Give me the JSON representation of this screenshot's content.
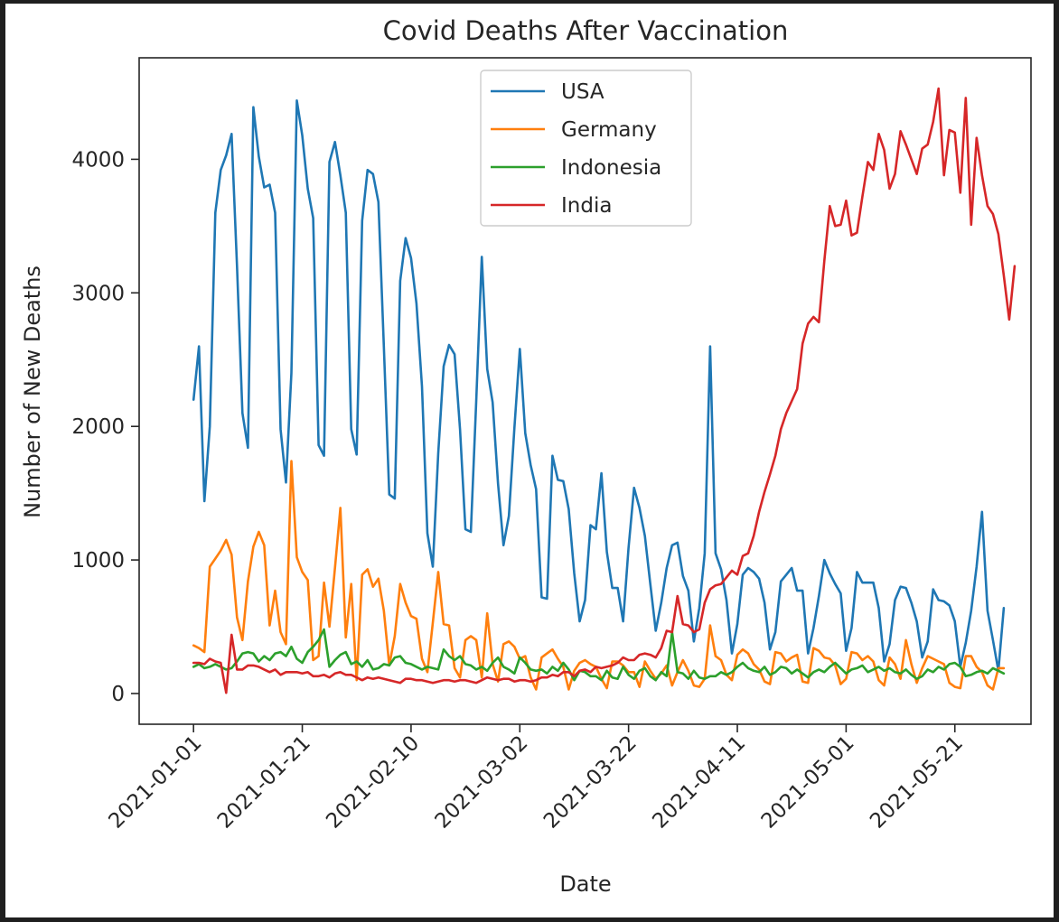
{
  "chart_data": {
    "type": "line",
    "title": "Covid Deaths After Vaccination",
    "xlabel": "Date",
    "ylabel": "Number of New Deaths",
    "x_start": "2021-01-01",
    "x_end": "2021-05-27",
    "xlim": [
      "2020-12-22",
      "2021-06-04"
    ],
    "ylim": [
      -230,
      4760
    ],
    "x_ticks": [
      "2021-01-01",
      "2021-01-21",
      "2021-02-10",
      "2021-03-02",
      "2021-03-22",
      "2021-04-11",
      "2021-05-01",
      "2021-05-21"
    ],
    "y_ticks": [
      0,
      1000,
      2000,
      3000,
      4000
    ],
    "legend_position": "upper center",
    "grid": false,
    "series": [
      {
        "name": "USA",
        "color": "#1f77b4",
        "values": [
          2200,
          2600,
          1440,
          2000,
          3600,
          3920,
          4030,
          4190,
          3200,
          2100,
          1840,
          4390,
          4020,
          3790,
          3810,
          3600,
          1980,
          1580,
          2400,
          4440,
          4180,
          3780,
          3560,
          1860,
          1780,
          3980,
          4130,
          3880,
          3600,
          1980,
          1790,
          3540,
          3920,
          3890,
          3680,
          2600,
          1490,
          1460,
          3090,
          3410,
          3260,
          2920,
          2300,
          1200,
          950,
          1800,
          2450,
          2610,
          2540,
          1980,
          1230,
          1210,
          2200,
          3270,
          2430,
          2180,
          1570,
          1110,
          1330,
          1990,
          2580,
          1950,
          1710,
          1530,
          720,
          710,
          1780,
          1600,
          1590,
          1380,
          900,
          540,
          700,
          1260,
          1230,
          1650,
          1060,
          790,
          790,
          540,
          1090,
          1540,
          1390,
          1180,
          820,
          470,
          680,
          940,
          1110,
          1130,
          880,
          770,
          390,
          640,
          1050,
          2600,
          1050,
          930,
          700,
          300,
          520,
          890,
          940,
          910,
          860,
          680,
          330,
          460,
          840,
          890,
          940,
          770,
          770,
          300,
          490,
          730,
          1000,
          900,
          820,
          750,
          320,
          490,
          910,
          830,
          830,
          830,
          640,
          240,
          370,
          700,
          800,
          790,
          680,
          540,
          270,
          390,
          780,
          700,
          690,
          660,
          540,
          200,
          380,
          620,
          950,
          1360,
          620,
          400,
          170,
          640
        ]
      },
      {
        "name": "Germany",
        "color": "#ff7f0e",
        "values": [
          360,
          340,
          310,
          950,
          1010,
          1070,
          1150,
          1040,
          570,
          400,
          840,
          1100,
          1210,
          1110,
          510,
          770,
          460,
          370,
          1740,
          1020,
          910,
          850,
          250,
          280,
          830,
          500,
          940,
          1390,
          420,
          820,
          100,
          890,
          930,
          800,
          860,
          620,
          210,
          430,
          820,
          680,
          580,
          560,
          260,
          160,
          530,
          910,
          520,
          510,
          190,
          120,
          400,
          430,
          400,
          120,
          600,
          220,
          90,
          370,
          390,
          350,
          260,
          280,
          120,
          30,
          270,
          300,
          330,
          260,
          200,
          30,
          170,
          230,
          250,
          220,
          200,
          110,
          40,
          240,
          240,
          210,
          160,
          160,
          50,
          240,
          170,
          110,
          150,
          210,
          60,
          160,
          250,
          170,
          60,
          50,
          110,
          510,
          280,
          250,
          140,
          100,
          290,
          330,
          300,
          220,
          180,
          90,
          70,
          310,
          300,
          240,
          270,
          290,
          90,
          80,
          340,
          320,
          270,
          260,
          210,
          70,
          110,
          310,
          300,
          250,
          280,
          240,
          100,
          60,
          270,
          220,
          110,
          400,
          220,
          80,
          190,
          280,
          260,
          240,
          220,
          80,
          50,
          40,
          280,
          280,
          200,
          160,
          60,
          30,
          190,
          190
        ]
      },
      {
        "name": "Indonesia",
        "color": "#2ca02c",
        "values": [
          200,
          220,
          190,
          200,
          220,
          200,
          180,
          190,
          240,
          300,
          310,
          300,
          240,
          280,
          250,
          300,
          310,
          280,
          350,
          260,
          230,
          310,
          350,
          400,
          480,
          200,
          250,
          290,
          310,
          220,
          240,
          200,
          250,
          180,
          190,
          220,
          210,
          270,
          280,
          230,
          220,
          200,
          180,
          200,
          190,
          180,
          330,
          280,
          250,
          280,
          220,
          210,
          180,
          200,
          170,
          230,
          270,
          200,
          180,
          150,
          270,
          230,
          180,
          170,
          180,
          150,
          200,
          170,
          230,
          180,
          100,
          170,
          160,
          130,
          130,
          100,
          170,
          120,
          110,
          200,
          140,
          110,
          170,
          190,
          130,
          100,
          160,
          130,
          460,
          160,
          150,
          110,
          170,
          120,
          110,
          130,
          130,
          160,
          140,
          160,
          200,
          230,
          190,
          170,
          160,
          200,
          140,
          160,
          200,
          190,
          150,
          180,
          150,
          120,
          160,
          180,
          160,
          200,
          230,
          190,
          150,
          180,
          190,
          210,
          160,
          180,
          200,
          170,
          190,
          160,
          150,
          180,
          140,
          110,
          130,
          180,
          160,
          200,
          180,
          220,
          230,
          200,
          130,
          140,
          160,
          170,
          150,
          190,
          170,
          150
        ]
      },
      {
        "name": "India",
        "color": "#d62728",
        "values": [
          230,
          230,
          220,
          260,
          240,
          230,
          5,
          440,
          180,
          180,
          210,
          210,
          200,
          180,
          160,
          180,
          140,
          160,
          160,
          160,
          150,
          160,
          130,
          130,
          140,
          120,
          150,
          160,
          140,
          140,
          120,
          100,
          120,
          110,
          120,
          110,
          100,
          90,
          80,
          110,
          110,
          100,
          100,
          90,
          80,
          90,
          100,
          100,
          90,
          100,
          100,
          90,
          80,
          100,
          120,
          110,
          100,
          110,
          110,
          90,
          100,
          100,
          90,
          100,
          120,
          120,
          140,
          130,
          160,
          160,
          130,
          170,
          180,
          160,
          200,
          190,
          200,
          210,
          230,
          270,
          250,
          250,
          290,
          300,
          290,
          270,
          340,
          470,
          460,
          730,
          520,
          510,
          460,
          480,
          680,
          780,
          810,
          820,
          870,
          920,
          890,
          1030,
          1050,
          1180,
          1360,
          1510,
          1640,
          1780,
          1980,
          2100,
          2190,
          2280,
          2620,
          2770,
          2820,
          2780,
          3240,
          3650,
          3500,
          3510,
          3690,
          3430,
          3450,
          3720,
          3980,
          3920,
          4190,
          4070,
          3780,
          3890,
          4210,
          4110,
          4000,
          3890,
          4080,
          4110,
          4280,
          4530,
          3880,
          4220,
          4200,
          3750,
          4460,
          3510,
          4160,
          3880,
          3650,
          3590,
          3440,
          3130,
          2800,
          3200
        ]
      }
    ]
  }
}
